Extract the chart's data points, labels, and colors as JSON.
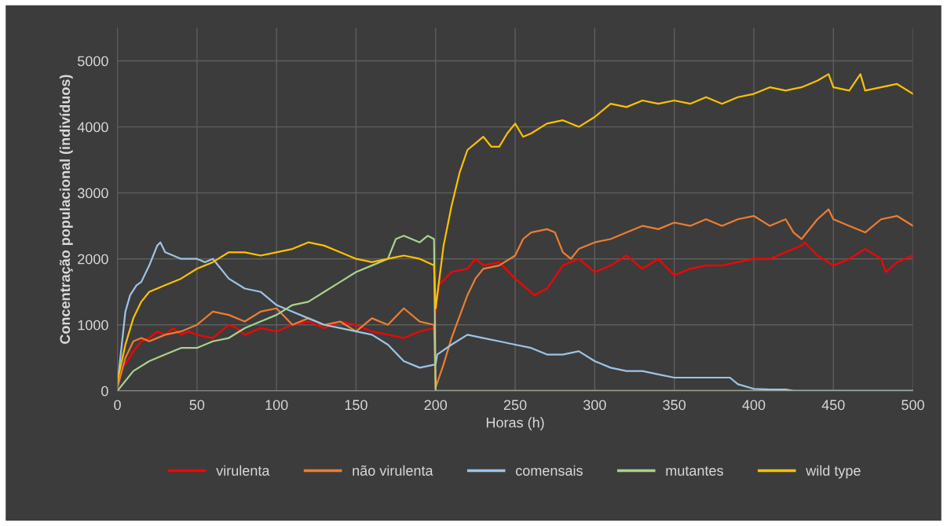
{
  "chart_data": {
    "type": "line",
    "xlabel": "Horas (h)",
    "ylabel": "Concentração populacional (indivíduos)",
    "xlim": [
      0,
      500
    ],
    "xticks": [
      0,
      50,
      100,
      150,
      200,
      250,
      300,
      350,
      400,
      450,
      500
    ],
    "ylim": [
      0,
      5500
    ],
    "yticks": [
      0,
      1000,
      2000,
      3000,
      4000,
      5000
    ],
    "grid": true,
    "legend": "bottom",
    "marker": "none",
    "line_style": "solid",
    "series": [
      {
        "name": "virulenta",
        "color": "#ff0000",
        "x": [
          5,
          10,
          15,
          20,
          25,
          30,
          35,
          40,
          45,
          50,
          60,
          70,
          75,
          80,
          90,
          100,
          110,
          120,
          130,
          140,
          150,
          160,
          170,
          180,
          190,
          199,
          200,
          202,
          210,
          220,
          225,
          230,
          240,
          250,
          255,
          262,
          270,
          280,
          290,
          300,
          310,
          320,
          330,
          340,
          350,
          360,
          370,
          380,
          390,
          400,
          410,
          420,
          430,
          432,
          440,
          450,
          460,
          470,
          480,
          483,
          490,
          500
        ],
        "values": [
          400,
          600,
          750,
          800,
          900,
          850,
          950,
          850,
          900,
          850,
          800,
          1000,
          950,
          850,
          950,
          900,
          1000,
          1050,
          950,
          1050,
          1000,
          900,
          850,
          800,
          900,
          950,
          1200,
          1600,
          1800,
          1850,
          2000,
          1900,
          1950,
          1700,
          1600,
          1450,
          1550,
          1900,
          2000,
          1800,
          1900,
          2050,
          1850,
          2000,
          1750,
          1850,
          1900,
          1900,
          1950,
          2000,
          2000,
          2100,
          2200,
          2250,
          2050,
          1900,
          2000,
          2150,
          2000,
          1800,
          1950,
          2050
        ]
      },
      {
        "name": "não virulenta",
        "color": "#ed7d31",
        "x": [
          0,
          5,
          10,
          15,
          20,
          30,
          40,
          50,
          60,
          70,
          80,
          90,
          100,
          110,
          120,
          130,
          140,
          150,
          160,
          170,
          180,
          190,
          199,
          200,
          205,
          210,
          220,
          225,
          230,
          240,
          250,
          255,
          260,
          270,
          275,
          280,
          285,
          290,
          300,
          310,
          320,
          330,
          340,
          350,
          360,
          370,
          380,
          390,
          400,
          410,
          420,
          425,
          430,
          440,
          447,
          450,
          460,
          470,
          480,
          490,
          500
        ],
        "values": [
          50,
          500,
          750,
          800,
          750,
          850,
          900,
          1000,
          1200,
          1150,
          1050,
          1200,
          1250,
          1000,
          1100,
          1000,
          1050,
          900,
          1100,
          1000,
          1250,
          1050,
          1000,
          50,
          400,
          800,
          1450,
          1700,
          1850,
          1900,
          2050,
          2300,
          2400,
          2450,
          2400,
          2100,
          2000,
          2150,
          2250,
          2300,
          2400,
          2500,
          2450,
          2550,
          2500,
          2600,
          2500,
          2600,
          2650,
          2500,
          2600,
          2400,
          2300,
          2600,
          2750,
          2600,
          2500,
          2400,
          2600,
          2650,
          2500
        ]
      },
      {
        "name": "comensais",
        "color": "#9dc3e6",
        "x": [
          0,
          5,
          8,
          12,
          15,
          20,
          25,
          27,
          30,
          35,
          40,
          50,
          55,
          60,
          70,
          80,
          90,
          100,
          110,
          120,
          130,
          140,
          150,
          160,
          170,
          180,
          190,
          200,
          201,
          210,
          220,
          230,
          240,
          250,
          260,
          270,
          280,
          290,
          300,
          310,
          320,
          330,
          340,
          350,
          360,
          370,
          380,
          385,
          390,
          400,
          410,
          420,
          425,
          450,
          500
        ],
        "values": [
          100,
          1200,
          1450,
          1600,
          1650,
          1900,
          2200,
          2250,
          2100,
          2050,
          2000,
          2000,
          1950,
          2000,
          1700,
          1550,
          1500,
          1300,
          1200,
          1100,
          1000,
          950,
          900,
          850,
          700,
          450,
          350,
          400,
          550,
          700,
          850,
          800,
          750,
          700,
          650,
          550,
          550,
          600,
          450,
          350,
          300,
          300,
          250,
          200,
          200,
          200,
          200,
          200,
          100,
          30,
          20,
          20,
          0,
          0,
          0
        ]
      },
      {
        "name": "mutantes",
        "color": "#a9d18e",
        "x": [
          0,
          10,
          20,
          30,
          40,
          50,
          60,
          70,
          80,
          90,
          100,
          110,
          120,
          130,
          140,
          150,
          160,
          170,
          175,
          180,
          190,
          195,
          199,
          200,
          500
        ],
        "values": [
          0,
          300,
          450,
          550,
          650,
          650,
          750,
          800,
          950,
          1050,
          1150,
          1300,
          1350,
          1500,
          1650,
          1800,
          1900,
          2000,
          2300,
          2350,
          2250,
          2350,
          2300,
          0,
          0
        ]
      },
      {
        "name": "wild type",
        "color": "#ffc000",
        "x": [
          0,
          5,
          10,
          15,
          20,
          30,
          40,
          50,
          60,
          70,
          80,
          90,
          100,
          110,
          120,
          130,
          140,
          150,
          160,
          170,
          180,
          190,
          199,
          200,
          205,
          210,
          215,
          220,
          225,
          230,
          235,
          240,
          245,
          250,
          255,
          260,
          270,
          280,
          290,
          300,
          310,
          320,
          330,
          340,
          350,
          360,
          370,
          380,
          390,
          400,
          410,
          420,
          430,
          440,
          447,
          450,
          460,
          467,
          470,
          480,
          490,
          500
        ],
        "values": [
          150,
          700,
          1100,
          1350,
          1500,
          1600,
          1700,
          1850,
          1950,
          2100,
          2100,
          2050,
          2100,
          2150,
          2250,
          2200,
          2100,
          2000,
          1950,
          2000,
          2050,
          2000,
          1900,
          1250,
          2200,
          2800,
          3300,
          3650,
          3750,
          3850,
          3700,
          3700,
          3900,
          4050,
          3850,
          3900,
          4050,
          4100,
          4000,
          4150,
          4350,
          4300,
          4400,
          4350,
          4400,
          4350,
          4450,
          4350,
          4450,
          4500,
          4600,
          4550,
          4600,
          4700,
          4800,
          4600,
          4550,
          4800,
          4550,
          4600,
          4650,
          4500
        ]
      }
    ]
  }
}
